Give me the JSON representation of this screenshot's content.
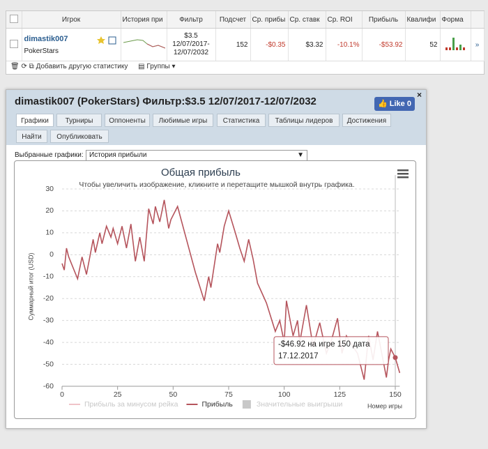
{
  "table": {
    "headers": [
      "Игрок",
      "История при",
      "Фильтр",
      "Подсчет",
      "Ср. прибы",
      "Ср. ставк",
      "Ср. ROI",
      "Прибыль",
      "Квалифи",
      "Форма"
    ],
    "rows": [
      [
        "dimastik007",
        "PokerStars",
        "$3.5 12/07/2017-12/07/2032",
        152,
        "-$0.35",
        "$3.32",
        "-10.1%",
        "-$53.92",
        52
      ]
    ]
  },
  "toolbar": {
    "add_stat": "Добавить другую статистику",
    "groups": "Группы"
  },
  "panel": {
    "title": "dimastik007 (PokerStars) Фильтр:$3.5 12/07/2017-12/07/2032",
    "like": "Like",
    "like_count": 0,
    "tabs": [
      "Графики",
      "Турниры",
      "Оппоненты",
      "Любимые игры",
      "Статистика",
      "Таблицы лидеров",
      "Достижения",
      "Найти",
      "Опубликовать"
    ],
    "select_label": "Выбранные графики:",
    "select_value": "История прибыли"
  },
  "chart_data": {
    "type": "line",
    "title": "Общая прибыль",
    "subtitle": "Чтобы увеличить изображение, кликните и перетащите мышкой внутрь графика.",
    "y_label": "Суммарный итог (USD)",
    "x_label": "Номер игры",
    "xlim": [
      0,
      152
    ],
    "xticks": [
      0,
      25,
      50,
      75,
      100,
      125,
      150
    ],
    "ylim": [
      -60,
      30
    ],
    "yticks": [
      -60,
      -50,
      -40,
      -30,
      -20,
      -10,
      0,
      10,
      20,
      30
    ],
    "grid": true,
    "series": [
      {
        "name": "Прибыль за минусом рейка",
        "color": "#f0c4c8",
        "marker": "line"
      },
      {
        "name": "Прибыль",
        "color": "#b5545c",
        "marker": "line",
        "x": [
          0,
          1,
          2,
          3,
          7,
          9,
          11,
          14,
          15,
          17,
          18,
          20,
          22,
          23,
          25,
          27,
          29,
          31,
          33,
          35,
          37,
          39,
          41,
          42,
          44,
          46,
          48,
          49,
          52,
          56,
          60,
          64,
          66,
          67,
          70,
          71,
          73,
          75,
          78,
          80,
          82,
          84,
          86,
          88,
          92,
          96,
          98,
          100,
          101,
          104,
          106,
          107,
          110,
          113,
          116,
          119,
          121,
          124,
          126,
          128,
          131,
          133,
          136,
          138,
          140,
          142,
          146,
          147,
          148,
          150,
          152
        ],
        "values": [
          -4,
          -7,
          3,
          -1,
          -11,
          -1,
          -9,
          7,
          1,
          10,
          5,
          13,
          8,
          12,
          5,
          13,
          3,
          14,
          -3,
          8,
          -3,
          21,
          14,
          22,
          15,
          25,
          12,
          16,
          22,
          7,
          -8,
          -21,
          -10,
          -15,
          5,
          1,
          13,
          20,
          10,
          3,
          -3,
          7,
          -2,
          -13,
          -22,
          -35,
          -30,
          -40,
          -21,
          -37,
          -30,
          -40,
          -23,
          -42,
          -31,
          -45,
          -40,
          -29,
          -45,
          -37,
          -42,
          -45,
          -57,
          -37,
          -48,
          -35,
          -56,
          -48,
          -43,
          -46.92,
          -53.92
        ]
      },
      {
        "name": "Значительные выигрыши",
        "color": "#c8c8c8",
        "marker": "square"
      }
    ],
    "tooltip": [
      "-$46.92 на игре 150 дата",
      "17.12.2017"
    ]
  }
}
